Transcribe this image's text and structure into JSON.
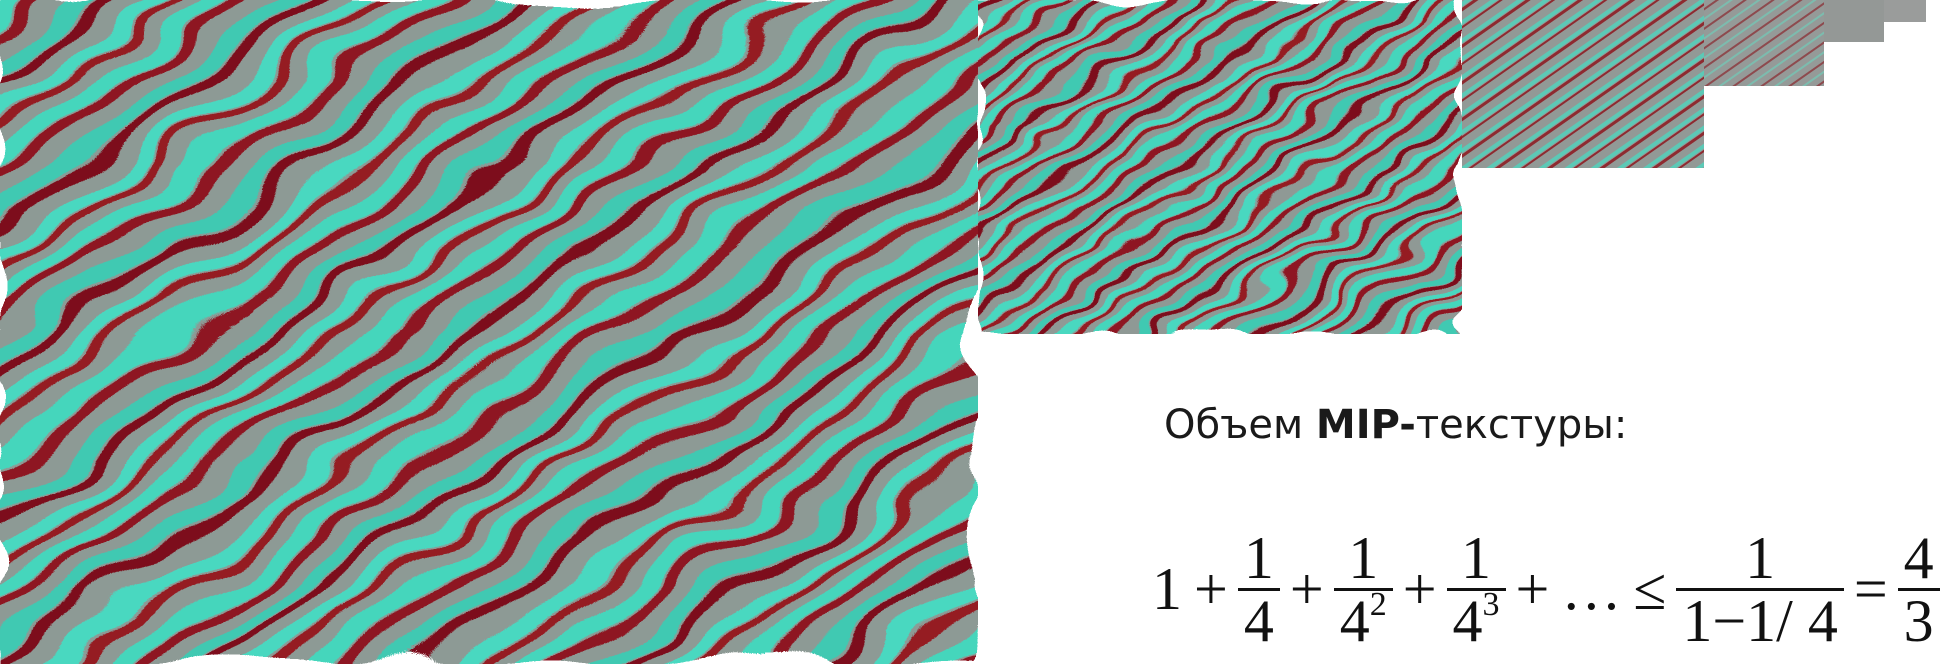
{
  "figure": {
    "levels": [
      {
        "level": 0,
        "label": ""
      },
      {
        "level": 1,
        "label": ""
      },
      {
        "level": 2,
        "label": ""
      },
      {
        "level": 3,
        "label": ""
      },
      {
        "level": 4,
        "label": ""
      },
      {
        "level": 5,
        "label": ""
      }
    ],
    "colors": {
      "base": "#8d9a95",
      "stripe_red": "#8e1520",
      "stripe_cyan": "#44d6bc",
      "background": "#ffffff"
    }
  },
  "caption": {
    "prefix": "Объем ",
    "bold": "MIP-",
    "suffix": "текстуры:"
  },
  "formula": {
    "one": "1",
    "plus": "+",
    "num": "1",
    "den1": "4",
    "den2_base": "4",
    "den2_exp": "2",
    "den3_base": "4",
    "den3_exp": "3",
    "ellipsis": "…",
    "leq": "≤",
    "rhs_num": "1",
    "rhs_den": "1−1/ 4",
    "eq": "=",
    "result_num": "4",
    "result_den": "3"
  }
}
